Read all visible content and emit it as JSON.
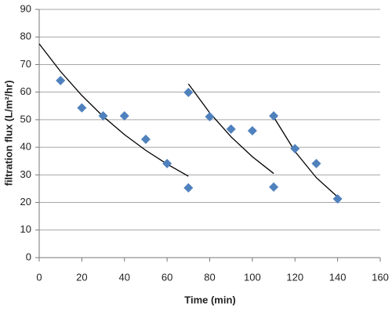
{
  "chart_data": {
    "type": "scatter",
    "x_label": "Time (min)",
    "y_label": "filtration flux (L/m²/hr)",
    "xlim": [
      0,
      160
    ],
    "xticks": [
      0,
      20,
      40,
      60,
      80,
      100,
      120,
      140,
      160
    ],
    "ylim": [
      0,
      90
    ],
    "yticks": [
      0,
      10,
      20,
      30,
      40,
      50,
      60,
      70,
      80,
      90
    ],
    "grid": true,
    "series": [
      {
        "color": "#4f81bd",
        "x": [
          10,
          20,
          30,
          40,
          50,
          60,
          70,
          70,
          80,
          90,
          100,
          110,
          110,
          120,
          130,
          140
        ],
        "values": [
          64.2,
          54.3,
          51.4,
          51.4,
          42.9,
          34.1,
          25.3,
          59.9,
          51.1,
          46.6,
          46,
          51.4,
          25.6,
          39.5,
          34.1,
          21.3
        ]
      }
    ],
    "trendlines": [
      {
        "color": "#000000",
        "x": [
          0,
          10,
          20,
          30,
          40,
          50,
          60,
          70
        ],
        "values": [
          77.5,
          67.5,
          58.8,
          51.2,
          44.6,
          38.9,
          33.9,
          29.5
        ]
      },
      {
        "color": "#000000",
        "x": [
          70,
          80,
          90,
          100,
          110
        ],
        "values": [
          63,
          52.5,
          43.8,
          36.6,
          30.5
        ]
      },
      {
        "color": "#000000",
        "x": [
          110,
          120,
          130,
          140
        ],
        "values": [
          51,
          38.5,
          29,
          22
        ]
      }
    ]
  }
}
